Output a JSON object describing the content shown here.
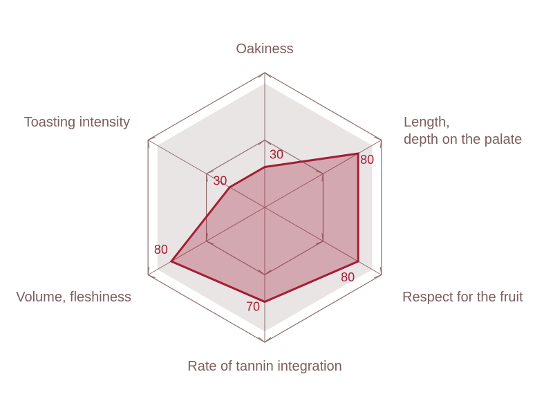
{
  "chart_data": {
    "type": "radar",
    "categories": [
      "Oakiness",
      "Length,\ndepth on the palate",
      "Respect for the fruit",
      "Rate of tannin integration",
      "Volume, fleshiness",
      "Toasting intensity"
    ],
    "values": [
      30,
      80,
      80,
      70,
      80,
      30
    ],
    "color": "#a51c36",
    "rlim": [
      0,
      100
    ],
    "rticks": [
      50,
      100
    ],
    "grid": true
  }
}
